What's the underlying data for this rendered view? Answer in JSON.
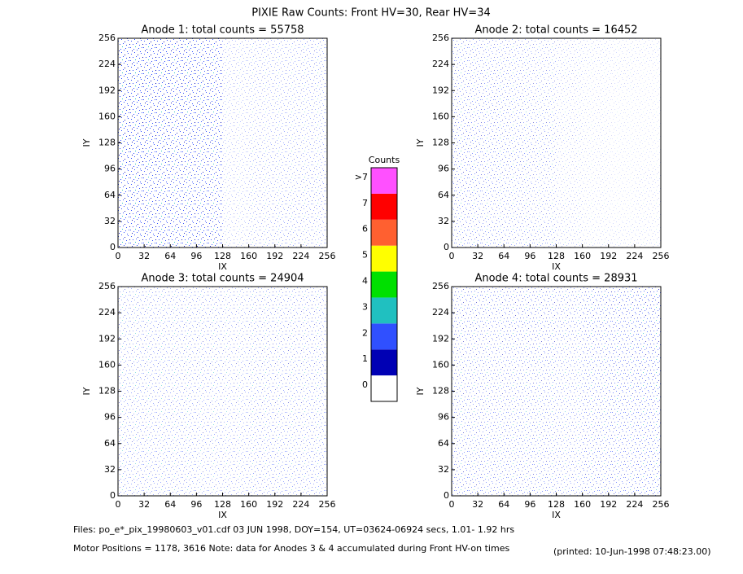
{
  "title": "PIXIE Raw Counts:  Front HV=30, Rear HV=34",
  "chart_data": [
    {
      "type": "heatmap",
      "title": "Anode 1: total counts = 55758",
      "xlabel": "IX",
      "ylabel": "IY",
      "xlim": [
        0,
        256
      ],
      "ylim": [
        0,
        256
      ],
      "xticks": [
        0,
        32,
        64,
        96,
        128,
        160,
        192,
        224,
        256
      ],
      "yticks": [
        0,
        32,
        64,
        96,
        128,
        160,
        192,
        224,
        256
      ],
      "density": [
        [
          0.9,
          0.9,
          0.85,
          0.85,
          0.3,
          0.4,
          0.45,
          0.4
        ],
        [
          0.9,
          0.85,
          0.85,
          0.8,
          0.3,
          0.4,
          0.45,
          0.45
        ],
        [
          0.9,
          0.85,
          0.8,
          0.8,
          0.3,
          0.4,
          0.4,
          0.45
        ],
        [
          0.95,
          0.9,
          0.85,
          0.8,
          0.3,
          0.4,
          0.4,
          0.4
        ],
        [
          0.95,
          0.9,
          0.85,
          0.85,
          0.3,
          0.35,
          0.4,
          0.4
        ],
        [
          0.95,
          0.9,
          0.9,
          0.85,
          0.3,
          0.35,
          0.4,
          0.4
        ],
        [
          0.95,
          0.95,
          0.9,
          0.85,
          0.35,
          0.4,
          0.4,
          0.45
        ],
        [
          0.95,
          0.95,
          0.9,
          0.85,
          0.35,
          0.4,
          0.4,
          0.45
        ]
      ]
    },
    {
      "type": "heatmap",
      "title": "Anode 2: total counts = 16452",
      "xlabel": "IX",
      "ylabel": "IY",
      "xlim": [
        0,
        256
      ],
      "ylim": [
        0,
        256
      ],
      "xticks": [
        0,
        32,
        64,
        96,
        128,
        160,
        192,
        224,
        256
      ],
      "yticks": [
        0,
        32,
        64,
        96,
        128,
        160,
        192,
        224,
        256
      ],
      "density": [
        [
          0.5,
          0.5,
          0.45,
          0.45,
          0.3,
          0.2,
          0.2,
          0.2
        ],
        [
          0.5,
          0.45,
          0.45,
          0.4,
          0.3,
          0.2,
          0.15,
          0.2
        ],
        [
          0.55,
          0.5,
          0.45,
          0.4,
          0.25,
          0.2,
          0.15,
          0.2
        ],
        [
          0.55,
          0.5,
          0.5,
          0.45,
          0.25,
          0.2,
          0.15,
          0.15
        ],
        [
          0.55,
          0.5,
          0.45,
          0.45,
          0.3,
          0.2,
          0.15,
          0.15
        ],
        [
          0.5,
          0.5,
          0.45,
          0.4,
          0.25,
          0.2,
          0.15,
          0.15
        ],
        [
          0.5,
          0.5,
          0.45,
          0.4,
          0.3,
          0.2,
          0.2,
          0.15
        ],
        [
          0.5,
          0.45,
          0.45,
          0.4,
          0.3,
          0.25,
          0.2,
          0.2
        ]
      ]
    },
    {
      "type": "heatmap",
      "title": "Anode 3: total counts = 24904",
      "xlabel": "IX",
      "ylabel": "IY",
      "xlim": [
        0,
        256
      ],
      "ylim": [
        0,
        256
      ],
      "xticks": [
        0,
        32,
        64,
        96,
        128,
        160,
        192,
        224,
        256
      ],
      "yticks": [
        0,
        32,
        64,
        96,
        128,
        160,
        192,
        224,
        256
      ],
      "density": [
        [
          0.45,
          0.45,
          0.45,
          0.4,
          0.4,
          0.45,
          0.45,
          0.45
        ],
        [
          0.45,
          0.45,
          0.45,
          0.4,
          0.4,
          0.45,
          0.45,
          0.45
        ],
        [
          0.45,
          0.45,
          0.45,
          0.45,
          0.4,
          0.45,
          0.45,
          0.45
        ],
        [
          0.45,
          0.45,
          0.45,
          0.4,
          0.4,
          0.45,
          0.45,
          0.45
        ],
        [
          0.45,
          0.45,
          0.45,
          0.45,
          0.4,
          0.45,
          0.45,
          0.45
        ],
        [
          0.45,
          0.45,
          0.45,
          0.45,
          0.4,
          0.45,
          0.45,
          0.45
        ],
        [
          0.45,
          0.45,
          0.45,
          0.45,
          0.4,
          0.45,
          0.45,
          0.45
        ],
        [
          0.45,
          0.45,
          0.45,
          0.45,
          0.4,
          0.45,
          0.45,
          0.45
        ]
      ]
    },
    {
      "type": "heatmap",
      "title": "Anode 4: total counts = 28931",
      "xlabel": "IX",
      "ylabel": "IY",
      "xlim": [
        0,
        256
      ],
      "ylim": [
        0,
        256
      ],
      "xticks": [
        0,
        32,
        64,
        96,
        128,
        160,
        192,
        224,
        256
      ],
      "yticks": [
        0,
        32,
        64,
        96,
        128,
        160,
        192,
        224,
        256
      ],
      "density": [
        [
          0.55,
          0.5,
          0.5,
          0.5,
          0.45,
          0.55,
          0.55,
          0.6
        ],
        [
          0.5,
          0.5,
          0.5,
          0.5,
          0.45,
          0.55,
          0.55,
          0.6
        ],
        [
          0.5,
          0.5,
          0.5,
          0.5,
          0.45,
          0.55,
          0.55,
          0.6
        ],
        [
          0.5,
          0.5,
          0.5,
          0.5,
          0.45,
          0.55,
          0.6,
          0.6
        ],
        [
          0.5,
          0.5,
          0.5,
          0.5,
          0.45,
          0.55,
          0.6,
          0.65
        ],
        [
          0.5,
          0.5,
          0.5,
          0.55,
          0.45,
          0.55,
          0.6,
          0.65
        ],
        [
          0.55,
          0.5,
          0.55,
          0.55,
          0.5,
          0.6,
          0.6,
          0.65
        ],
        [
          0.55,
          0.55,
          0.55,
          0.55,
          0.5,
          0.6,
          0.65,
          0.7
        ]
      ]
    }
  ],
  "colorbar": {
    "title": "Counts",
    "ticks": [
      0,
      1,
      2,
      3,
      4,
      5,
      6,
      7,
      {
        "value": 8,
        "label": ">7"
      }
    ],
    "colors": [
      "#ffffff",
      "#0000b4",
      "#3050ff",
      "#20c0c0",
      "#00e000",
      "#ffff00",
      "#ff6030",
      "#ff0000",
      "#ff50ff"
    ]
  },
  "footer": [
    "Files: po_e*_pix_19980603_v01.cdf    03 JUN 1998, DOY=154, UT=03624-06924 secs,  1.01- 1.92 hrs",
    "Motor Positions = 1178, 3616   Note: data for Anodes 3 & 4 accumulated during Front HV-on times",
    "(printed: 10-Jun-1998 07:48:23.00)"
  ]
}
